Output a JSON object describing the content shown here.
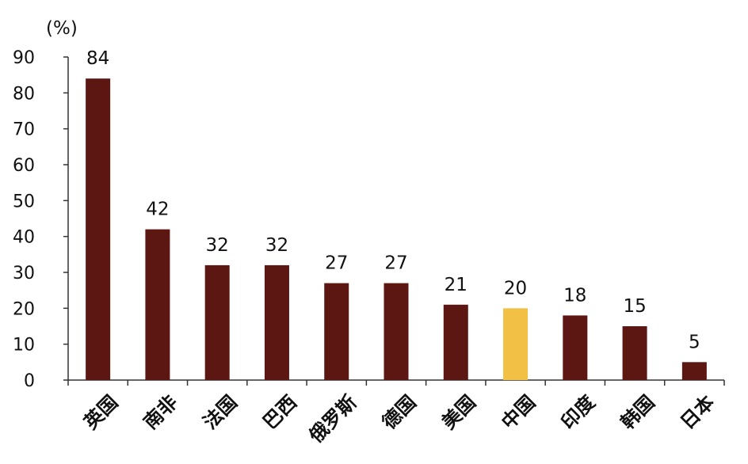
{
  "chart_data": {
    "type": "bar",
    "unit_label": "(%)",
    "categories": [
      "英国",
      "南非",
      "法国",
      "巴西",
      "俄罗斯",
      "德国",
      "美国",
      "中国",
      "印度",
      "韩国",
      "日本"
    ],
    "values": [
      84,
      42,
      32,
      32,
      27,
      27,
      21,
      20,
      18,
      15,
      5
    ],
    "value_labels": [
      "84",
      "42",
      "32",
      "32",
      "27",
      "27",
      "21",
      "20",
      "18",
      "15",
      "5"
    ],
    "yticks": [
      "0",
      "10",
      "20",
      "30",
      "40",
      "50",
      "60",
      "70",
      "80",
      "90"
    ],
    "ylim": [
      0,
      90
    ],
    "grid": false,
    "legend": "none",
    "colors": {
      "default": "#5c1713",
      "highlight": "#f2c045",
      "highlight_category": "中国"
    }
  }
}
